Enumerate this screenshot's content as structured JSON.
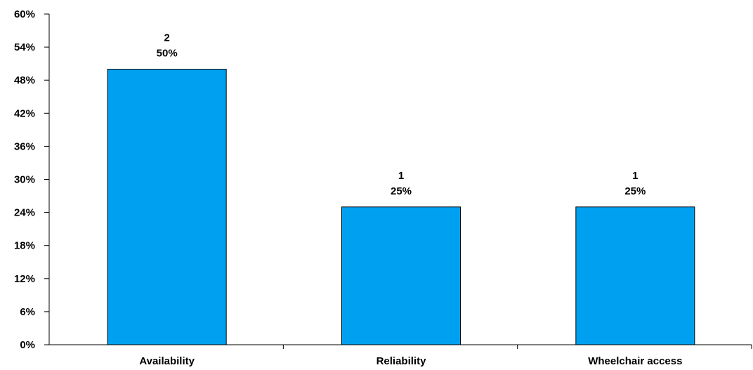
{
  "chart_data": {
    "type": "bar",
    "title": "",
    "xlabel": "",
    "ylabel": "",
    "categories": [
      "Availability",
      "Reliability",
      "Wheelchair access"
    ],
    "series": [
      {
        "values": [
          50,
          25,
          25
        ],
        "counts": [
          "2",
          "1",
          "1"
        ],
        "percent_labels": [
          "50%",
          "25%",
          "25%"
        ]
      }
    ],
    "ylim": [
      0,
      60
    ],
    "yticks": [
      0,
      6,
      12,
      18,
      24,
      30,
      36,
      42,
      48,
      54,
      60
    ],
    "ytick_labels": [
      "0%",
      "6%",
      "12%",
      "18%",
      "24%",
      "30%",
      "36%",
      "42%",
      "48%",
      "54%",
      "60%"
    ],
    "bar_color": "#00a0f0",
    "grid": false,
    "legend": "none"
  }
}
